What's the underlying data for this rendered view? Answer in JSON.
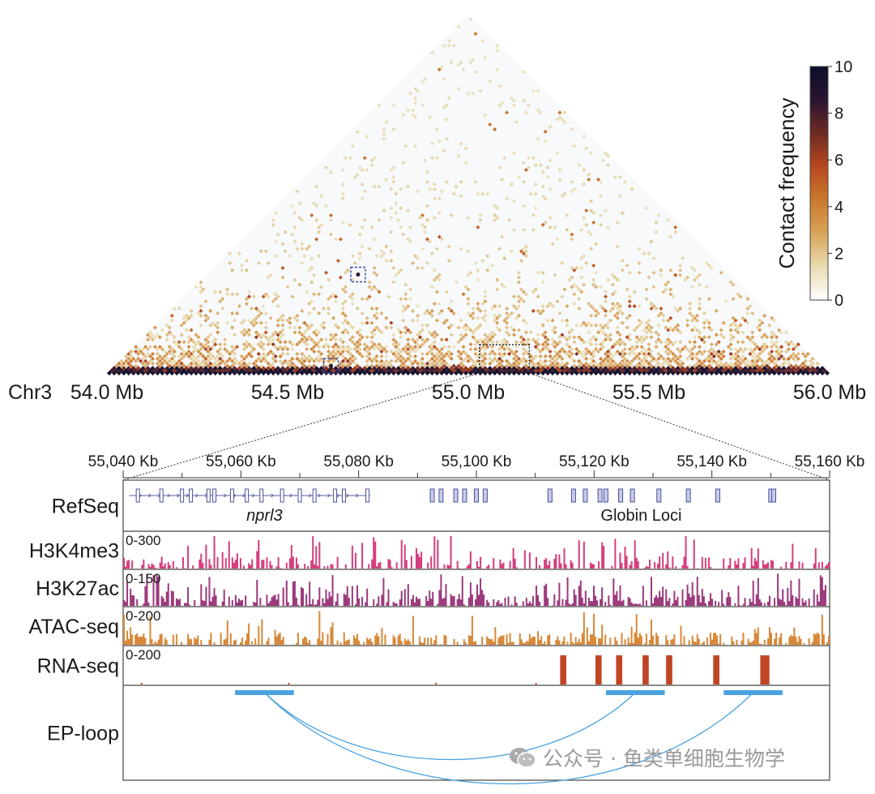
{
  "chart_data": {
    "type": "heatmap",
    "title": "",
    "chromosome_label": "Chr3",
    "hic": {
      "xlim": [
        54.0,
        56.0
      ],
      "tick_labels": [
        "54.0 Mb",
        "54.5 Mb",
        "55.0 Mb",
        "55.5 Mb",
        "56.0 Mb"
      ],
      "tick_values": [
        54.0,
        54.5,
        55.0,
        55.5,
        56.0
      ],
      "highlighted_loops": [
        {
          "anchor1_mb": 54.42,
          "anchor2_mb": 54.97,
          "box": "blue-dashed"
        },
        {
          "anchor1_mb": 54.6,
          "anchor2_mb": 54.64,
          "box": "blue-dashed"
        },
        {
          "zoom_region_mb": [
            55.04,
            55.16
          ],
          "box": "black-dotted"
        }
      ]
    },
    "colorbar": {
      "label": "Contact frequency",
      "range": [
        0,
        10
      ],
      "tick_labels": [
        "0",
        "2",
        "4",
        "6",
        "8",
        "10"
      ],
      "colors": [
        "#ffffff",
        "#e8dcb0",
        "#d9a45a",
        "#c9792e",
        "#b8471f",
        "#6e2a24",
        "#2a1530",
        "#0b0f2a"
      ]
    },
    "zoom": {
      "xlim": [
        55040,
        55160
      ],
      "tick_labels": [
        "55,040 Kb",
        "55,060 Kb",
        "55,080 Kb",
        "55,100 Kb",
        "55,120 Kb",
        "55,140 Kb",
        "55,160 Kb"
      ],
      "tick_values": [
        55040,
        55060,
        55080,
        55100,
        55120,
        55140,
        55160
      ]
    },
    "tracks": [
      {
        "name": "RefSeq",
        "type": "genes",
        "gene_labels": [
          {
            "text": "nprl3",
            "pos": 55064,
            "italic": true
          },
          {
            "text": "Globin Loci",
            "pos": 55128,
            "italic": false
          }
        ],
        "exons_kb": [
          55042.5,
          55046.5,
          55050,
          55051.5,
          55054.5,
          55055.5,
          55058.5,
          55061,
          55063.5,
          55067,
          55070,
          55072.5,
          55076,
          55077.5,
          55081.5,
          55092.5,
          55094,
          55096.5,
          55098,
          55100,
          55101.5,
          55112.5,
          55116.5,
          55118.5,
          55121,
          55122,
          55124.5,
          55126.5,
          55131,
          55136,
          55141,
          55150,
          55150.5
        ]
      },
      {
        "name": "H3K4me3",
        "range_label": "0-300",
        "color": "#d63f7c",
        "max": 300
      },
      {
        "name": "H3K27ac",
        "range_label": "0-150",
        "color": "#9c3b7d",
        "max": 150
      },
      {
        "name": "ATAC-seq",
        "range_label": "0-200",
        "color": "#d8893a",
        "max": 200
      },
      {
        "name": "RNA-seq",
        "range_label": "0-200",
        "color": "#c04525",
        "max": 200,
        "peaks_kb": [
          55114.5,
          55115,
          55120.5,
          55121,
          55124,
          55124.5,
          55128.5,
          55129,
          55132.5,
          55133,
          55140.5,
          55141,
          55148.5,
          55149,
          55149.5
        ]
      },
      {
        "name": "EP-loop",
        "type": "loops",
        "color": "#4aa3e0",
        "anchors_kb": [
          [
            55059,
            55069
          ],
          [
            55122,
            55132
          ],
          [
            55142,
            55152
          ]
        ],
        "arcs": [
          [
            55064,
            55127
          ],
          [
            55064,
            55147
          ]
        ]
      }
    ]
  },
  "watermark": {
    "text": "公众号 · 鱼类单细胞生物学",
    "icon": "wechat-icon"
  }
}
